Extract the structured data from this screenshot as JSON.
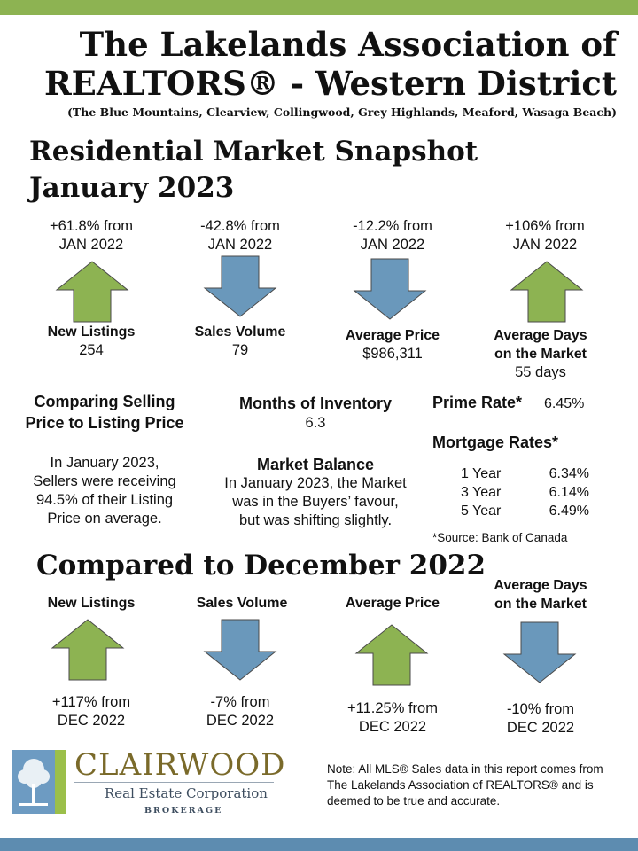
{
  "header": {
    "title_line1": "The Lakelands Association of",
    "title_line2": "REALTORS® - Western District",
    "subtitle": "(The Blue Mountains, Clearview, Collingwood, Grey Highlands, Meaford, Wasaga Beach)"
  },
  "snapshot": {
    "title": "Residential Market Snapshot",
    "month": "January 2023",
    "metrics": [
      {
        "change_line1": "+61.8% from",
        "change_line2": "JAN 2022",
        "direction": "up",
        "label_line1": "New Listings",
        "label_line2": "",
        "value": "254"
      },
      {
        "change_line1": "-42.8% from",
        "change_line2": "JAN 2022",
        "direction": "down",
        "label_line1": "Sales Volume",
        "label_line2": "",
        "value": "79"
      },
      {
        "change_line1": "-12.2% from",
        "change_line2": "JAN 2022",
        "direction": "down",
        "label_line1": "Average Price",
        "label_line2": "",
        "value": "$986,311"
      },
      {
        "change_line1": "+106% from",
        "change_line2": "JAN 2022",
        "direction": "up",
        "label_line1": "Average Days",
        "label_line2": "on the Market",
        "value": "55 days"
      }
    ]
  },
  "selling_vs_listing": {
    "title": "Comparing Selling Price to Listing Price",
    "text": "In January 2023, Sellers were receiving 94.5% of their Listing Price on average."
  },
  "inventory": {
    "title": "Months of Inventory",
    "value": "6.3"
  },
  "market_balance": {
    "title": "Market Balance",
    "text": "In January 2023, the Market was in the Buyers’ favour, but was shifting slightly."
  },
  "rates": {
    "prime_label": "Prime Rate*",
    "prime_value": "6.45%",
    "mortgage_label": "Mortgage Rates*",
    "mortgage": [
      {
        "term": "1 Year",
        "rate": "6.34%"
      },
      {
        "term": "3 Year",
        "rate": "6.14%"
      },
      {
        "term": "5 Year",
        "rate": "6.49%"
      }
    ],
    "source": "*Source: Bank of Canada"
  },
  "comparison": {
    "title": "Compared to December 2022",
    "metrics": [
      {
        "label_line1": "New Listings",
        "label_line2": "",
        "direction": "up",
        "change_line1": "+117% from",
        "change_line2": "DEC 2022"
      },
      {
        "label_line1": "Sales Volume",
        "label_line2": "",
        "direction": "down",
        "change_line1": "-7% from",
        "change_line2": "DEC 2022"
      },
      {
        "label_line1": "Average Price",
        "label_line2": "",
        "direction": "up",
        "change_line1": "+11.25% from",
        "change_line2": "DEC 2022"
      },
      {
        "label_line1": "Average Days",
        "label_line2": "on the Market",
        "direction": "down",
        "change_line1": "-10% from",
        "change_line2": "DEC 2022"
      }
    ]
  },
  "brokerage": {
    "name": "CLAIRWOOD",
    "subtitle": "Real Estate Corporation",
    "tagline": "BROKERAGE"
  },
  "note": "Note: All MLS® Sales data in this report comes from The Lakelands  Association of REALTORS® and is deemed to be true and accurate.",
  "colors": {
    "up_arrow": "#8db352",
    "down_arrow": "#6a98bb",
    "arrow_stroke": "#4a4a4a",
    "top_bar": "#8db352",
    "bottom_bar": "#5d8cb0"
  }
}
